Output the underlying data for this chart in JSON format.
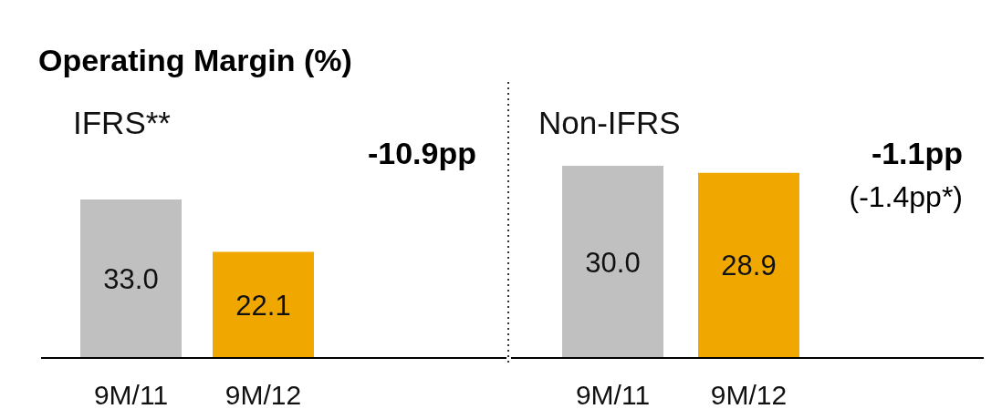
{
  "chart_data": [
    {
      "type": "bar",
      "title": "Operating Margin (%)",
      "subtitle": "IFRS**",
      "categories": [
        "9M/11",
        "9M/12"
      ],
      "values": [
        33.0,
        22.1
      ],
      "value_labels": [
        "33.0",
        "22.1"
      ],
      "colors": [
        "#c0c0c0",
        "#f0a800"
      ],
      "tick_labels": "x",
      "annotations": [
        "-10.9pp"
      ]
    },
    {
      "type": "bar",
      "subtitle": "Non-IFRS",
      "categories": [
        "9M/11",
        "9M/12"
      ],
      "values": [
        30.0,
        28.9
      ],
      "value_labels": [
        "30.0",
        "28.9"
      ],
      "colors": [
        "#c0c0c0",
        "#f0a800"
      ],
      "tick_labels": "x",
      "annotations": [
        "-1.1pp",
        "(-1.4pp*)"
      ]
    }
  ]
}
